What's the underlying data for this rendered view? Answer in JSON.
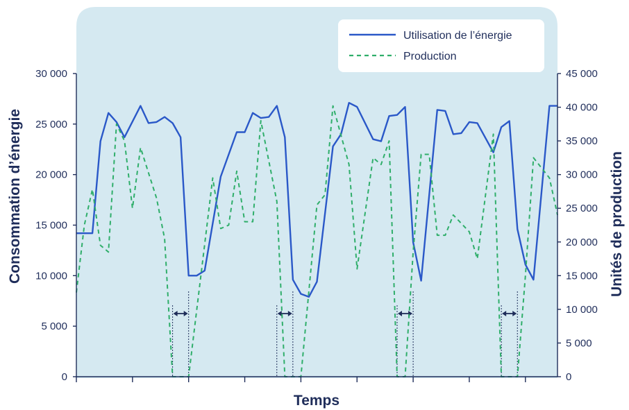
{
  "chart_data": {
    "type": "line",
    "xlabel": "Temps",
    "ylabel_left": "Consommation d’énergie",
    "ylabel_right": "Unités de production",
    "ylim_left": [
      0,
      30000
    ],
    "ylim_right": [
      0,
      45000
    ],
    "yticks_left": [
      "0",
      "5 000",
      "10 000",
      "15 000",
      "20 000",
      "25 000",
      "30 000"
    ],
    "yticks_right": [
      "0",
      "5 000",
      "10 000",
      "15 000",
      "20 000",
      "25 000",
      "30 000",
      "35 000",
      "40 000",
      "45 000"
    ],
    "x_range": [
      0,
      60
    ],
    "legend": [
      "Utilisation de l’énergie",
      "Production"
    ],
    "legend_position": "top-right",
    "series": [
      {
        "name": "Utilisation de l’énergie",
        "axis": "left",
        "style": "solid",
        "color": "#2a58c8",
        "points": [
          [
            0,
            14200
          ],
          [
            2,
            14200
          ],
          [
            3,
            23300
          ],
          [
            4,
            26100
          ],
          [
            5,
            25200
          ],
          [
            6,
            23700
          ],
          [
            8,
            26800
          ],
          [
            9,
            25100
          ],
          [
            10,
            25200
          ],
          [
            11,
            25700
          ],
          [
            12,
            25100
          ],
          [
            13,
            23700
          ],
          [
            14,
            10000
          ],
          [
            15,
            10000
          ],
          [
            16,
            10500
          ],
          [
            18,
            19800
          ],
          [
            20,
            24200
          ],
          [
            21,
            24200
          ],
          [
            22,
            26100
          ],
          [
            23,
            25600
          ],
          [
            24,
            25700
          ],
          [
            25,
            26800
          ],
          [
            26,
            23700
          ],
          [
            27,
            9600
          ],
          [
            28,
            8200
          ],
          [
            29,
            7900
          ],
          [
            30,
            9400
          ],
          [
            32,
            22800
          ],
          [
            33,
            24000
          ],
          [
            34,
            27100
          ],
          [
            35,
            26700
          ],
          [
            37,
            23500
          ],
          [
            38,
            23300
          ],
          [
            39,
            25800
          ],
          [
            40,
            25900
          ],
          [
            41,
            26700
          ],
          [
            42,
            13300
          ],
          [
            43,
            9500
          ],
          [
            45,
            26400
          ],
          [
            46,
            26300
          ],
          [
            47,
            24000
          ],
          [
            48,
            24100
          ],
          [
            49,
            25200
          ],
          [
            50,
            25100
          ],
          [
            52,
            22200
          ],
          [
            53,
            24700
          ],
          [
            54,
            25300
          ],
          [
            55,
            14600
          ],
          [
            56,
            11100
          ],
          [
            57,
            9600
          ],
          [
            59,
            26800
          ],
          [
            60,
            26800
          ]
        ]
      },
      {
        "name": "Production",
        "axis": "right",
        "style": "dashed",
        "color": "#2fae6a",
        "points": [
          [
            0,
            12500
          ],
          [
            1,
            22500
          ],
          [
            2,
            27800
          ],
          [
            3,
            19500
          ],
          [
            4,
            18500
          ],
          [
            5,
            37500
          ],
          [
            6,
            35000
          ],
          [
            7,
            25000
          ],
          [
            8,
            34000
          ],
          [
            10,
            26500
          ],
          [
            11,
            20500
          ],
          [
            12,
            0
          ],
          [
            14,
            0
          ],
          [
            17,
            29500
          ],
          [
            18,
            22000
          ],
          [
            19,
            22500
          ],
          [
            20,
            30500
          ],
          [
            21,
            23000
          ],
          [
            22,
            23000
          ],
          [
            23,
            38000
          ],
          [
            25,
            26000
          ],
          [
            26,
            0
          ],
          [
            28,
            0
          ],
          [
            30,
            25500
          ],
          [
            31,
            27000
          ],
          [
            32,
            40200
          ],
          [
            34,
            31500
          ],
          [
            35,
            16000
          ],
          [
            37,
            32500
          ],
          [
            38,
            31500
          ],
          [
            39,
            35000
          ],
          [
            40,
            0
          ],
          [
            41,
            0
          ],
          [
            42,
            18500
          ],
          [
            43,
            33000
          ],
          [
            44,
            33000
          ],
          [
            45,
            21000
          ],
          [
            46,
            21000
          ],
          [
            47,
            24000
          ],
          [
            49,
            21500
          ],
          [
            50,
            17500
          ],
          [
            52,
            36000
          ],
          [
            53,
            0
          ],
          [
            55,
            0
          ],
          [
            56,
            15000
          ],
          [
            57,
            32500
          ],
          [
            59,
            29500
          ],
          [
            60,
            24000
          ]
        ]
      }
    ],
    "gap_markers": [
      {
        "start": 12,
        "end": 14
      },
      {
        "start": 25,
        "end": 27
      },
      {
        "start": 40,
        "end": 42
      },
      {
        "start": 53,
        "end": 55
      }
    ]
  },
  "colors": {
    "plot_background": "#d5e9f1",
    "axis_text": "#1f2d5a",
    "energy_line": "#2a58c8",
    "production_line": "#2fae6a",
    "marker": "#1f2d5a"
  }
}
